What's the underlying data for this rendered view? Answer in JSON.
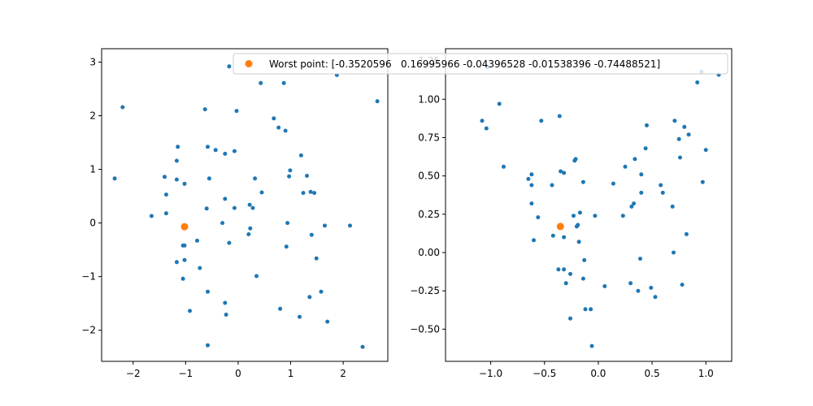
{
  "colors": {
    "points": "#1f77b4",
    "worst": "#ff7f0e",
    "axis": "#000000",
    "background": "#ffffff"
  },
  "chart_data": [
    {
      "type": "scatter",
      "xlim": [
        -2.6,
        2.85
      ],
      "ylim": [
        -2.58,
        3.25
      ],
      "xticks": [
        -2,
        -1,
        0,
        1,
        2
      ],
      "yticks": [
        -2,
        -1,
        0,
        1,
        2,
        3
      ],
      "grid": false,
      "series": [
        {
          "role": "points",
          "color": "#1f77b4",
          "points": [
            [
              -2.35,
              0.83
            ],
            [
              -2.2,
              2.16
            ],
            [
              -1.65,
              0.13
            ],
            [
              -1.4,
              0.86
            ],
            [
              -1.37,
              0.53
            ],
            [
              -1.37,
              0.18
            ],
            [
              -1.15,
              1.42
            ],
            [
              -1.17,
              1.16
            ],
            [
              -1.17,
              0.81
            ],
            [
              -1.17,
              -0.73
            ],
            [
              -1.02,
              0.73
            ],
            [
              -1.05,
              -0.42
            ],
            [
              -1.02,
              -0.42
            ],
            [
              -1.02,
              -0.69
            ],
            [
              -1.05,
              -1.04
            ],
            [
              -0.92,
              -1.64
            ],
            [
              -0.78,
              -0.33
            ],
            [
              -0.73,
              -0.84
            ],
            [
              -0.63,
              2.12
            ],
            [
              -0.6,
              0.27
            ],
            [
              -0.58,
              1.42
            ],
            [
              -0.55,
              0.83
            ],
            [
              -0.58,
              -1.28
            ],
            [
              -0.58,
              -2.28
            ],
            [
              -0.43,
              1.36
            ],
            [
              -0.3,
              0.0
            ],
            [
              -0.25,
              1.29
            ],
            [
              -0.25,
              0.45
            ],
            [
              -0.25,
              -1.49
            ],
            [
              -0.23,
              -1.71
            ],
            [
              -0.17,
              2.92
            ],
            [
              -0.17,
              -0.37
            ],
            [
              -0.07,
              1.34
            ],
            [
              -0.07,
              0.28
            ],
            [
              -0.03,
              2.09
            ],
            [
              0.22,
              0.34
            ],
            [
              0.2,
              -0.21
            ],
            [
              0.23,
              -0.1
            ],
            [
              0.28,
              0.28
            ],
            [
              0.32,
              0.83
            ],
            [
              0.35,
              -0.99
            ],
            [
              0.43,
              2.61
            ],
            [
              0.45,
              0.57
            ],
            [
              0.68,
              1.95
            ],
            [
              0.77,
              1.78
            ],
            [
              0.8,
              -1.6
            ],
            [
              0.87,
              2.61
            ],
            [
              0.9,
              1.72
            ],
            [
              0.92,
              -0.44
            ],
            [
              0.94,
              0.0
            ],
            [
              0.97,
              0.87
            ],
            [
              0.99,
              0.98
            ],
            [
              1.17,
              -1.75
            ],
            [
              1.2,
              1.26
            ],
            [
              1.24,
              0.56
            ],
            [
              1.31,
              0.88
            ],
            [
              1.36,
              -1.38
            ],
            [
              1.38,
              0.58
            ],
            [
              1.4,
              -0.22
            ],
            [
              1.45,
              0.56
            ],
            [
              1.49,
              -0.66
            ],
            [
              1.58,
              -1.28
            ],
            [
              1.65,
              -0.05
            ],
            [
              1.7,
              -1.84
            ],
            [
              1.88,
              2.76
            ],
            [
              2.13,
              -0.05
            ],
            [
              2.37,
              -2.31
            ],
            [
              2.65,
              2.27
            ]
          ]
        },
        {
          "role": "worst",
          "color": "#ff7f0e",
          "points": [
            [
              -1.02,
              -0.07
            ]
          ]
        }
      ]
    },
    {
      "type": "scatter",
      "xlim": [
        -1.42,
        1.24
      ],
      "ylim": [
        -0.71,
        1.33
      ],
      "xticks": [
        -1.0,
        -0.5,
        0.0,
        0.5,
        1.0
      ],
      "yticks": [
        -0.5,
        -0.25,
        0.0,
        0.25,
        0.5,
        0.75,
        1.0,
        1.25
      ],
      "grid": false,
      "legend": {
        "placement": "top-left",
        "label": "Worst point: [-0.3520596   0.16995966 -0.04396528 -0.01538396 -0.74488521]"
      },
      "series": [
        {
          "role": "points",
          "color": "#1f77b4",
          "points": [
            [
              -1.03,
              1.21
            ],
            [
              -1.08,
              0.86
            ],
            [
              -1.04,
              0.81
            ],
            [
              -0.92,
              0.97
            ],
            [
              -0.88,
              0.56
            ],
            [
              -0.65,
              0.48
            ],
            [
              -0.62,
              0.51
            ],
            [
              -0.62,
              0.44
            ],
            [
              -0.62,
              0.32
            ],
            [
              -0.6,
              0.08
            ],
            [
              -0.56,
              0.23
            ],
            [
              -0.53,
              0.86
            ],
            [
              -0.43,
              0.44
            ],
            [
              -0.42,
              0.11
            ],
            [
              -0.37,
              -0.11
            ],
            [
              -0.36,
              0.89
            ],
            [
              -0.35,
              0.53
            ],
            [
              -0.32,
              0.52
            ],
            [
              -0.32,
              0.1
            ],
            [
              -0.32,
              -0.11
            ],
            [
              -0.3,
              -0.2
            ],
            [
              -0.26,
              -0.14
            ],
            [
              -0.26,
              -0.43
            ],
            [
              -0.23,
              0.24
            ],
            [
              -0.22,
              0.6
            ],
            [
              -0.21,
              0.61
            ],
            [
              -0.2,
              0.17
            ],
            [
              -0.19,
              0.18
            ],
            [
              -0.18,
              0.07
            ],
            [
              -0.17,
              0.26
            ],
            [
              -0.14,
              -0.17
            ],
            [
              -0.14,
              0.46
            ],
            [
              -0.13,
              -0.05
            ],
            [
              -0.12,
              -0.37
            ],
            [
              -0.07,
              -0.37
            ],
            [
              -0.06,
              -0.61
            ],
            [
              -0.03,
              0.24
            ],
            [
              0.06,
              -0.22
            ],
            [
              0.14,
              0.45
            ],
            [
              0.23,
              0.24
            ],
            [
              0.25,
              0.56
            ],
            [
              0.3,
              -0.2
            ],
            [
              0.31,
              0.3
            ],
            [
              0.33,
              0.32
            ],
            [
              0.34,
              0.61
            ],
            [
              0.37,
              -0.25
            ],
            [
              0.39,
              -0.04
            ],
            [
              0.4,
              0.51
            ],
            [
              0.4,
              0.39
            ],
            [
              0.44,
              0.68
            ],
            [
              0.45,
              0.83
            ],
            [
              0.49,
              -0.23
            ],
            [
              0.53,
              -0.29
            ],
            [
              0.58,
              0.44
            ],
            [
              0.6,
              0.39
            ],
            [
              0.69,
              0.3
            ],
            [
              0.7,
              0.0
            ],
            [
              0.71,
              0.86
            ],
            [
              0.75,
              0.74
            ],
            [
              0.76,
              0.62
            ],
            [
              0.78,
              -0.21
            ],
            [
              0.8,
              0.82
            ],
            [
              0.82,
              0.12
            ],
            [
              0.84,
              0.77
            ],
            [
              0.92,
              1.11
            ],
            [
              0.96,
              1.18
            ],
            [
              0.97,
              0.46
            ],
            [
              1.0,
              0.67
            ],
            [
              1.12,
              1.16
            ]
          ]
        },
        {
          "role": "worst",
          "color": "#ff7f0e",
          "points": [
            [
              -0.352,
              0.17
            ]
          ]
        }
      ]
    }
  ]
}
